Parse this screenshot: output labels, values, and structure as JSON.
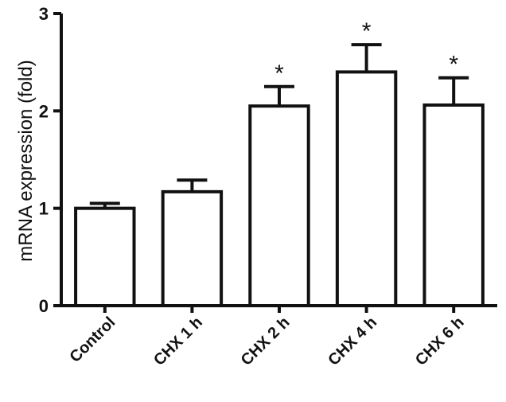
{
  "chart_data": {
    "type": "bar",
    "title": "",
    "xlabel": "",
    "ylabel": "mRNA expression (fold)",
    "ylim": [
      0,
      3
    ],
    "yticks": [
      "0",
      "1",
      "2",
      "3"
    ],
    "categories": [
      "Control",
      "CHX 1 h",
      "CHX 2 h",
      "CHX 4 h",
      "CHX 6 h"
    ],
    "values": [
      1.0,
      1.17,
      2.05,
      2.4,
      2.06
    ],
    "errors": [
      0.05,
      0.12,
      0.2,
      0.28,
      0.28
    ],
    "significance": [
      "",
      "",
      "*",
      "*",
      "*"
    ],
    "grid": false,
    "legend": "none",
    "colors": {
      "bar_fill": "#ffffff",
      "bar_stroke": "#111111"
    }
  }
}
